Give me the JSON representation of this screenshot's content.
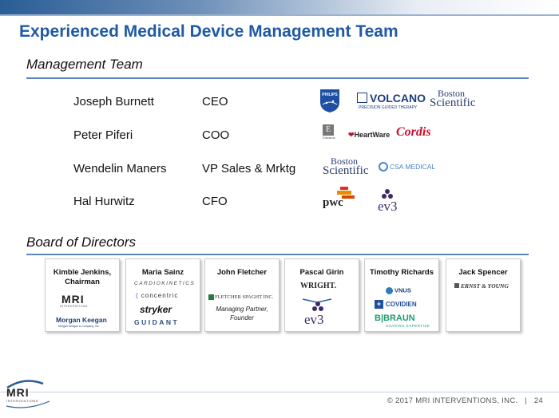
{
  "title": "Experienced Medical Device Management Team",
  "management": {
    "heading": "Management Team",
    "people": [
      {
        "name": "Joseph Burnett",
        "role": "CEO"
      },
      {
        "name": "Peter Piferi",
        "role": "COO"
      },
      {
        "name": "Wendelin Maners",
        "role": "VP Sales & Mrktg"
      },
      {
        "name": "Hal Hurwitz",
        "role": "CFO"
      }
    ],
    "logos": {
      "philips": "PHILIPS",
      "volcano": "VOLCANO",
      "volcano_tag": "PRECISION GUIDED THERAPY",
      "boston_1": "Boston",
      "boston_2": "Scientific",
      "edwards": "Edwards",
      "heartware": "HeartWare",
      "cordis": "Cordis",
      "csa": "CSA MEDICAL",
      "pwc": "pwc",
      "ev3": "ev3"
    }
  },
  "board": {
    "heading": "Board of Directors",
    "members": [
      {
        "name": "Kimble Jenkins, Chairman",
        "logos": [
          "MRI",
          "INTERVENTIONS",
          "Morgan Keegan",
          "Morgan Keegan & Company, Inc."
        ]
      },
      {
        "name": "Maria Sainz",
        "logos": [
          "CARDIOKINETICS",
          "concentric",
          "stryker",
          "GUIDANT"
        ]
      },
      {
        "name": "John Fletcher",
        "logos": [
          "FLETCHER SPAGHT INC."
        ],
        "note": "Managing Partner, Founder"
      },
      {
        "name": "Pascal Girin",
        "logos": [
          "WRIGHT.",
          "ev3"
        ]
      },
      {
        "name": "Timothy Richards",
        "logos": [
          "VNUS",
          "COVIDIEN",
          "B|BRAUN",
          "SHARING EXPERTISE"
        ]
      },
      {
        "name": "Jack Spencer",
        "logos": [
          "ERNST & YOUNG"
        ]
      }
    ]
  },
  "footer": {
    "logo": "MRI",
    "logo_sub": "INTERVENTIONS",
    "text": "© 2017 MRI INTERVENTIONS, INC.   |   24"
  },
  "colors": {
    "title": "#1f5aa6",
    "rule": "#5b86bd"
  }
}
